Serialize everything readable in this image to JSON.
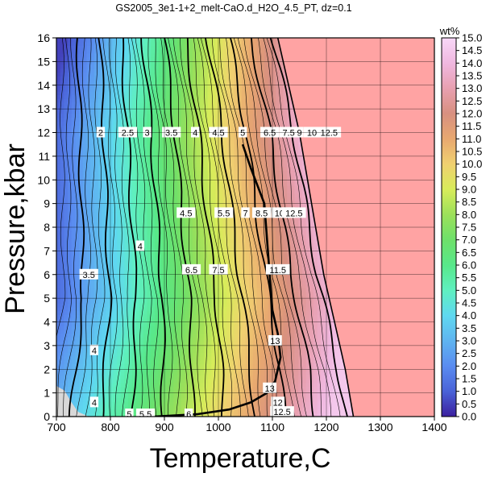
{
  "chart_data": {
    "type": "heatmap",
    "title": "GS2005_3e1-1+2_melt-CaO.d_H2O_4.5_PT, dz=0.1",
    "xlabel": "Temperature,C",
    "ylabel": "Pressure,kbar",
    "colorbar_label": "wt%",
    "xlim": [
      700,
      1400
    ],
    "ylim": [
      0,
      16
    ],
    "zlim": [
      0.0,
      15.0
    ],
    "x_ticks": [
      700,
      800,
      900,
      1000,
      1100,
      1200,
      1300,
      1400
    ],
    "y_ticks": [
      0,
      1,
      2,
      3,
      4,
      5,
      6,
      7,
      8,
      9,
      10,
      11,
      12,
      13,
      14,
      15,
      16
    ],
    "colorbar_ticks": [
      "0.0",
      "0.5",
      "1.0",
      "1.5",
      "2.0",
      "2.5",
      "3.0",
      "3.5",
      "4.0",
      "4.5",
      "5.0",
      "5.5",
      "6.0",
      "6.5",
      "7.0",
      "7.5",
      "8.0",
      "8.5",
      "9.0",
      "9.5",
      "10.0",
      "10.5",
      "11.0",
      "11.5",
      "12.0",
      "12.5",
      "13.0",
      "13.5",
      "14.0",
      "14.5",
      "15.0"
    ],
    "colormap": [
      {
        "z": 0.0,
        "color": "#3b1f9e"
      },
      {
        "z": 1.0,
        "color": "#4a63d8"
      },
      {
        "z": 2.0,
        "color": "#5a8cf0"
      },
      {
        "z": 3.0,
        "color": "#5fb4f0"
      },
      {
        "z": 4.0,
        "color": "#5fd8f0"
      },
      {
        "z": 5.0,
        "color": "#5ff0c0"
      },
      {
        "z": 6.0,
        "color": "#58e88a"
      },
      {
        "z": 7.0,
        "color": "#6ee06a"
      },
      {
        "z": 8.0,
        "color": "#9ce05a"
      },
      {
        "z": 9.0,
        "color": "#d8ec5a"
      },
      {
        "z": 10.0,
        "color": "#f0d070"
      },
      {
        "z": 11.0,
        "color": "#e8a870"
      },
      {
        "z": 12.0,
        "color": "#d89080"
      },
      {
        "z": 13.0,
        "color": "#e8a0b0"
      },
      {
        "z": 14.0,
        "color": "#f0b8e0"
      },
      {
        "z": 15.0,
        "color": "#f8d8f8"
      }
    ],
    "solidus_boundary": [
      [
        880,
        0
      ],
      [
        960,
        0.1
      ],
      [
        1020,
        0.3
      ],
      [
        1060,
        0.6
      ],
      [
        1090,
        1.0
      ],
      [
        1105,
        1.5
      ],
      [
        1115,
        2.5
      ],
      [
        1110,
        3.5
      ],
      [
        1100,
        4.5
      ],
      [
        1095,
        6.0
      ],
      [
        1090,
        7.5
      ],
      [
        1085,
        9.0
      ],
      [
        1060,
        10.5
      ],
      [
        1045,
        11.5
      ]
    ],
    "liquidus_boundary": [
      [
        1250,
        0
      ],
      [
        1235,
        2
      ],
      [
        1215,
        4
      ],
      [
        1195,
        6
      ],
      [
        1180,
        8
      ],
      [
        1165,
        10
      ],
      [
        1150,
        12
      ],
      [
        1130,
        14
      ],
      [
        1110,
        16
      ]
    ],
    "above_liquidus_color": "#ffa3a3",
    "subsolidus_color": "#d8d8d8",
    "contour_labels": [
      {
        "text": "2",
        "T": 782,
        "P": 12.0
      },
      {
        "text": "2.5",
        "T": 832,
        "P": 12.0
      },
      {
        "text": "3",
        "T": 868,
        "P": 12.0
      },
      {
        "text": "3.5",
        "T": 913,
        "P": 12.0
      },
      {
        "text": "4",
        "T": 957,
        "P": 12.0
      },
      {
        "text": "4.5",
        "T": 1000,
        "P": 12.0
      },
      {
        "text": "5",
        "T": 1045,
        "P": 12.0
      },
      {
        "text": "6.5",
        "T": 1095,
        "P": 12.0
      },
      {
        "text": "7.5",
        "T": 1130,
        "P": 12.0
      },
      {
        "text": "9",
        "T": 1150,
        "P": 12.0
      },
      {
        "text": "10.5",
        "T": 1180,
        "P": 12.0
      },
      {
        "text": "12.5",
        "T": 1205,
        "P": 12.0
      },
      {
        "text": "4.5",
        "T": 940,
        "P": 8.6
      },
      {
        "text": "5.5",
        "T": 1010,
        "P": 8.6
      },
      {
        "text": "7",
        "T": 1050,
        "P": 8.6
      },
      {
        "text": "8.5",
        "T": 1080,
        "P": 8.6
      },
      {
        "text": "10.5",
        "T": 1120,
        "P": 8.6
      },
      {
        "text": "12.5",
        "T": 1140,
        "P": 8.6
      },
      {
        "text": "4",
        "T": 855,
        "P": 7.2
      },
      {
        "text": "6.5",
        "T": 950,
        "P": 6.2
      },
      {
        "text": "7.5",
        "T": 1000,
        "P": 6.2
      },
      {
        "text": "11.5",
        "T": 1110,
        "P": 6.2
      },
      {
        "text": "3.5",
        "T": 760,
        "P": 6.0
      },
      {
        "text": "4",
        "T": 770,
        "P": 2.8
      },
      {
        "text": "4",
        "T": 770,
        "P": 0.6
      },
      {
        "text": "5",
        "T": 835,
        "P": 0.1
      },
      {
        "text": "5.5",
        "T": 865,
        "P": 0.1
      },
      {
        "text": "6",
        "T": 945,
        "P": 0.1
      },
      {
        "text": "13",
        "T": 1105,
        "P": 3.2
      },
      {
        "text": "13",
        "T": 1095,
        "P": 1.2
      },
      {
        "text": "12",
        "T": 1110,
        "P": 0.6
      },
      {
        "text": "12.5",
        "T": 1118,
        "P": 0.2
      }
    ]
  }
}
